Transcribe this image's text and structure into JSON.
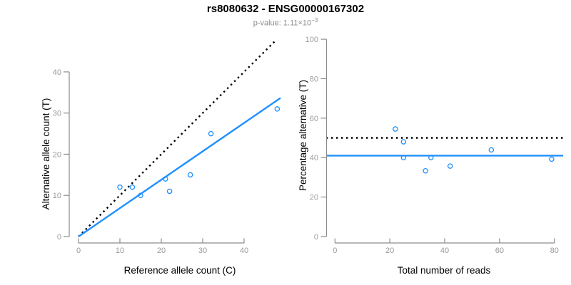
{
  "figure": {
    "title": "rs8080632 - ENSG00000167302",
    "subtitle_prefix": "p-value: ",
    "subtitle_mantissa": "1.11",
    "subtitle_times": "×10",
    "subtitle_exponent": "−3"
  },
  "colors": {
    "accent_blue": "#1e90ff",
    "dotted_black": "#000000",
    "axis_line": "#8c8c8c",
    "tick_label": "#9b9b9b",
    "axis_title": "#000000",
    "background": "#ffffff"
  },
  "chart_data": [
    {
      "type": "scatter",
      "name": "allele-counts-plot",
      "title": "",
      "xlabel": "Reference allele count (C)",
      "ylabel": "Alternative allele count (T)",
      "xlim": [
        0,
        48.8
      ],
      "ylim": [
        0,
        47.6
      ],
      "xticks": [
        0,
        10,
        20,
        30,
        40
      ],
      "yticks": [
        0,
        10,
        20,
        30,
        40
      ],
      "grid": false,
      "legend": "none",
      "marker": "open-circle",
      "points": [
        [
          10,
          12
        ],
        [
          13,
          12
        ],
        [
          15,
          10
        ],
        [
          21,
          14
        ],
        [
          22,
          11
        ],
        [
          27,
          15
        ],
        [
          32,
          25
        ],
        [
          48,
          31
        ]
      ],
      "lines": [
        {
          "name": "identity-line",
          "style": "dotted",
          "color": "#000000",
          "slope": 1,
          "intercept": 0
        },
        {
          "name": "fit-line",
          "style": "solid",
          "color": "#1e90ff",
          "slope": 0.69,
          "intercept": 0
        }
      ]
    },
    {
      "type": "scatter",
      "name": "percentage-vs-reads-plot",
      "title": "",
      "xlabel": "Total number of reads",
      "ylabel": "Percentage alternative (T)",
      "xlim": [
        -3.2,
        83.2
      ],
      "ylim": [
        -4,
        104
      ],
      "xticks": [
        0,
        20,
        40,
        60,
        80
      ],
      "yticks": [
        0,
        20,
        40,
        60,
        80,
        100
      ],
      "grid": false,
      "legend": "none",
      "marker": "open-circle",
      "points": [
        [
          22,
          54.5
        ],
        [
          25,
          48
        ],
        [
          25,
          40
        ],
        [
          33,
          33.3
        ],
        [
          35,
          40
        ],
        [
          42,
          35.7
        ],
        [
          57,
          43.9
        ],
        [
          79,
          39.2
        ]
      ],
      "lines": [
        {
          "name": "fifty-percent-line",
          "style": "dotted",
          "color": "#000000",
          "slope": 0,
          "intercept": 50
        },
        {
          "name": "mean-percentage-line",
          "style": "solid",
          "color": "#1e90ff",
          "slope": 0,
          "intercept": 41
        }
      ]
    }
  ]
}
